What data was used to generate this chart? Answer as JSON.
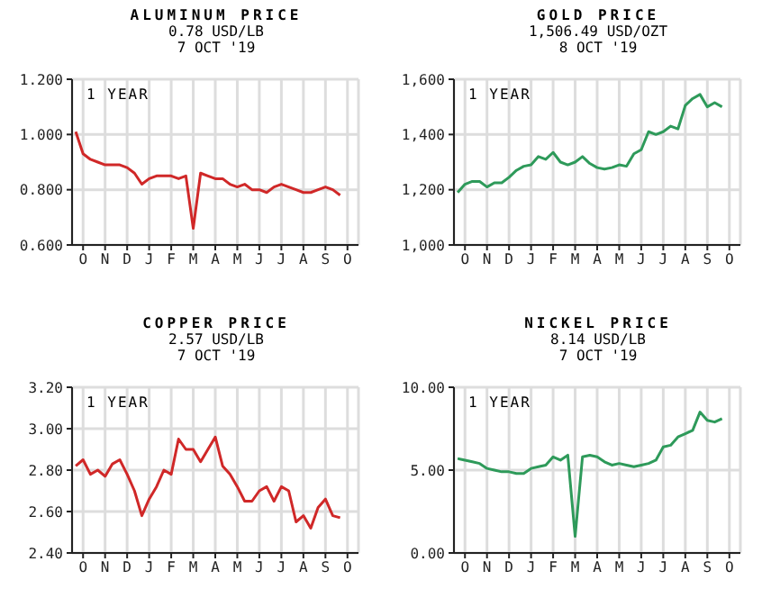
{
  "chart_data": [
    {
      "type": "line",
      "title": "ALUMINUM PRICE",
      "subtitle": "0.78 USD/LB\n7 OCT '19",
      "annotations": [
        "1 YEAR"
      ],
      "marker": "none",
      "grid": true,
      "categories": [
        null,
        "O",
        null,
        null,
        "N",
        null,
        null,
        "D",
        null,
        null,
        "J",
        null,
        null,
        "F",
        null,
        null,
        "M",
        null,
        null,
        "A",
        null,
        null,
        "M",
        null,
        null,
        "J",
        null,
        null,
        "J",
        null,
        null,
        "A",
        null,
        null,
        "S",
        null,
        null,
        "O",
        null
      ],
      "series": [
        {
          "color": "#d02828",
          "values": [
            1.01,
            0.93,
            0.91,
            0.9,
            0.89,
            0.89,
            0.89,
            0.88,
            0.86,
            0.82,
            0.84,
            0.85,
            0.85,
            0.85,
            0.84,
            0.85,
            0.66,
            0.86,
            0.85,
            0.84,
            0.84,
            0.82,
            0.81,
            0.82,
            0.8,
            0.8,
            0.79,
            0.81,
            0.82,
            0.81,
            0.8,
            0.79,
            0.79,
            0.8,
            0.81,
            0.8,
            0.78,
            null,
            null
          ]
        }
      ],
      "ylim": [
        0.6,
        1.2
      ],
      "yticks": [
        {
          "value": 0.6,
          "label": "0.600"
        },
        {
          "value": 0.8,
          "label": "0.800"
        },
        {
          "value": 1.0,
          "label": "1.000"
        },
        {
          "value": 1.2,
          "label": "1.200"
        }
      ]
    },
    {
      "type": "line",
      "title": "GOLD PRICE",
      "subtitle": "1,506.49 USD/OZT\n8 OCT '19",
      "annotations": [
        "1 YEAR"
      ],
      "marker": "none",
      "grid": true,
      "categories": [
        null,
        "O",
        null,
        null,
        "N",
        null,
        null,
        "D",
        null,
        null,
        "J",
        null,
        null,
        "F",
        null,
        null,
        "M",
        null,
        null,
        "A",
        null,
        null,
        "M",
        null,
        null,
        "J",
        null,
        null,
        "J",
        null,
        null,
        "A",
        null,
        null,
        "S",
        null,
        null,
        "O",
        null
      ],
      "series": [
        {
          "color": "#2e9a5a",
          "values": [
            1190,
            1220,
            1230,
            1230,
            1210,
            1225,
            1225,
            1245,
            1270,
            1285,
            1290,
            1320,
            1310,
            1335,
            1300,
            1290,
            1300,
            1320,
            1295,
            1280,
            1275,
            1280,
            1290,
            1285,
            1330,
            1345,
            1410,
            1400,
            1410,
            1430,
            1420,
            1505,
            1530,
            1545,
            1500,
            1515,
            1500,
            null,
            null
          ]
        }
      ],
      "ylim": [
        1000,
        1600
      ],
      "yticks": [
        {
          "value": 1000,
          "label": "1,000"
        },
        {
          "value": 1200,
          "label": "1,200"
        },
        {
          "value": 1400,
          "label": "1,400"
        },
        {
          "value": 1600,
          "label": "1,600"
        }
      ]
    },
    {
      "type": "line",
      "title": "COPPER PRICE",
      "subtitle": "2.57 USD/LB\n7 OCT '19",
      "annotations": [
        "1 YEAR"
      ],
      "marker": "none",
      "grid": true,
      "categories": [
        null,
        "O",
        null,
        null,
        "N",
        null,
        null,
        "D",
        null,
        null,
        "J",
        null,
        null,
        "F",
        null,
        null,
        "M",
        null,
        null,
        "A",
        null,
        null,
        "M",
        null,
        null,
        "J",
        null,
        null,
        "J",
        null,
        null,
        "A",
        null,
        null,
        "S",
        null,
        null,
        "O",
        null
      ],
      "series": [
        {
          "color": "#d02828",
          "values": [
            2.82,
            2.85,
            2.78,
            2.8,
            2.77,
            2.83,
            2.85,
            2.78,
            2.7,
            2.58,
            2.66,
            2.72,
            2.8,
            2.78,
            2.95,
            2.9,
            2.9,
            2.84,
            2.9,
            2.96,
            2.82,
            2.78,
            2.72,
            2.65,
            2.65,
            2.7,
            2.72,
            2.65,
            2.72,
            2.7,
            2.55,
            2.58,
            2.52,
            2.62,
            2.66,
            2.58,
            2.57,
            null,
            null
          ]
        }
      ],
      "ylim": [
        2.4,
        3.2
      ],
      "yticks": [
        {
          "value": 2.4,
          "label": "2.40"
        },
        {
          "value": 2.6,
          "label": "2.60"
        },
        {
          "value": 2.8,
          "label": "2.80"
        },
        {
          "value": 3.0,
          "label": "3.00"
        },
        {
          "value": 3.2,
          "label": "3.20"
        }
      ]
    },
    {
      "type": "line",
      "title": "NICKEL PRICE",
      "subtitle": "8.14 USD/LB\n7 OCT '19",
      "annotations": [
        "1 YEAR"
      ],
      "marker": "none",
      "grid": true,
      "categories": [
        null,
        "O",
        null,
        null,
        "N",
        null,
        null,
        "D",
        null,
        null,
        "J",
        null,
        null,
        "F",
        null,
        null,
        "M",
        null,
        null,
        "A",
        null,
        null,
        "M",
        null,
        null,
        "J",
        null,
        null,
        "J",
        null,
        null,
        "A",
        null,
        null,
        "S",
        null,
        null,
        "O",
        null
      ],
      "series": [
        {
          "color": "#2e9a5a",
          "values": [
            5.7,
            5.6,
            5.5,
            5.4,
            5.1,
            5.0,
            4.9,
            4.9,
            4.8,
            4.8,
            5.1,
            5.2,
            5.3,
            5.8,
            5.6,
            5.9,
            1.0,
            5.8,
            5.9,
            5.8,
            5.5,
            5.3,
            5.4,
            5.3,
            5.2,
            5.3,
            5.4,
            5.6,
            6.4,
            6.5,
            7.0,
            7.2,
            7.4,
            8.5,
            8.0,
            7.9,
            8.1,
            null,
            null
          ]
        }
      ],
      "ylim": [
        0,
        10
      ],
      "yticks": [
        {
          "value": 0,
          "label": "0.00"
        },
        {
          "value": 5,
          "label": "5.00"
        },
        {
          "value": 10,
          "label": "10.00"
        }
      ]
    }
  ]
}
